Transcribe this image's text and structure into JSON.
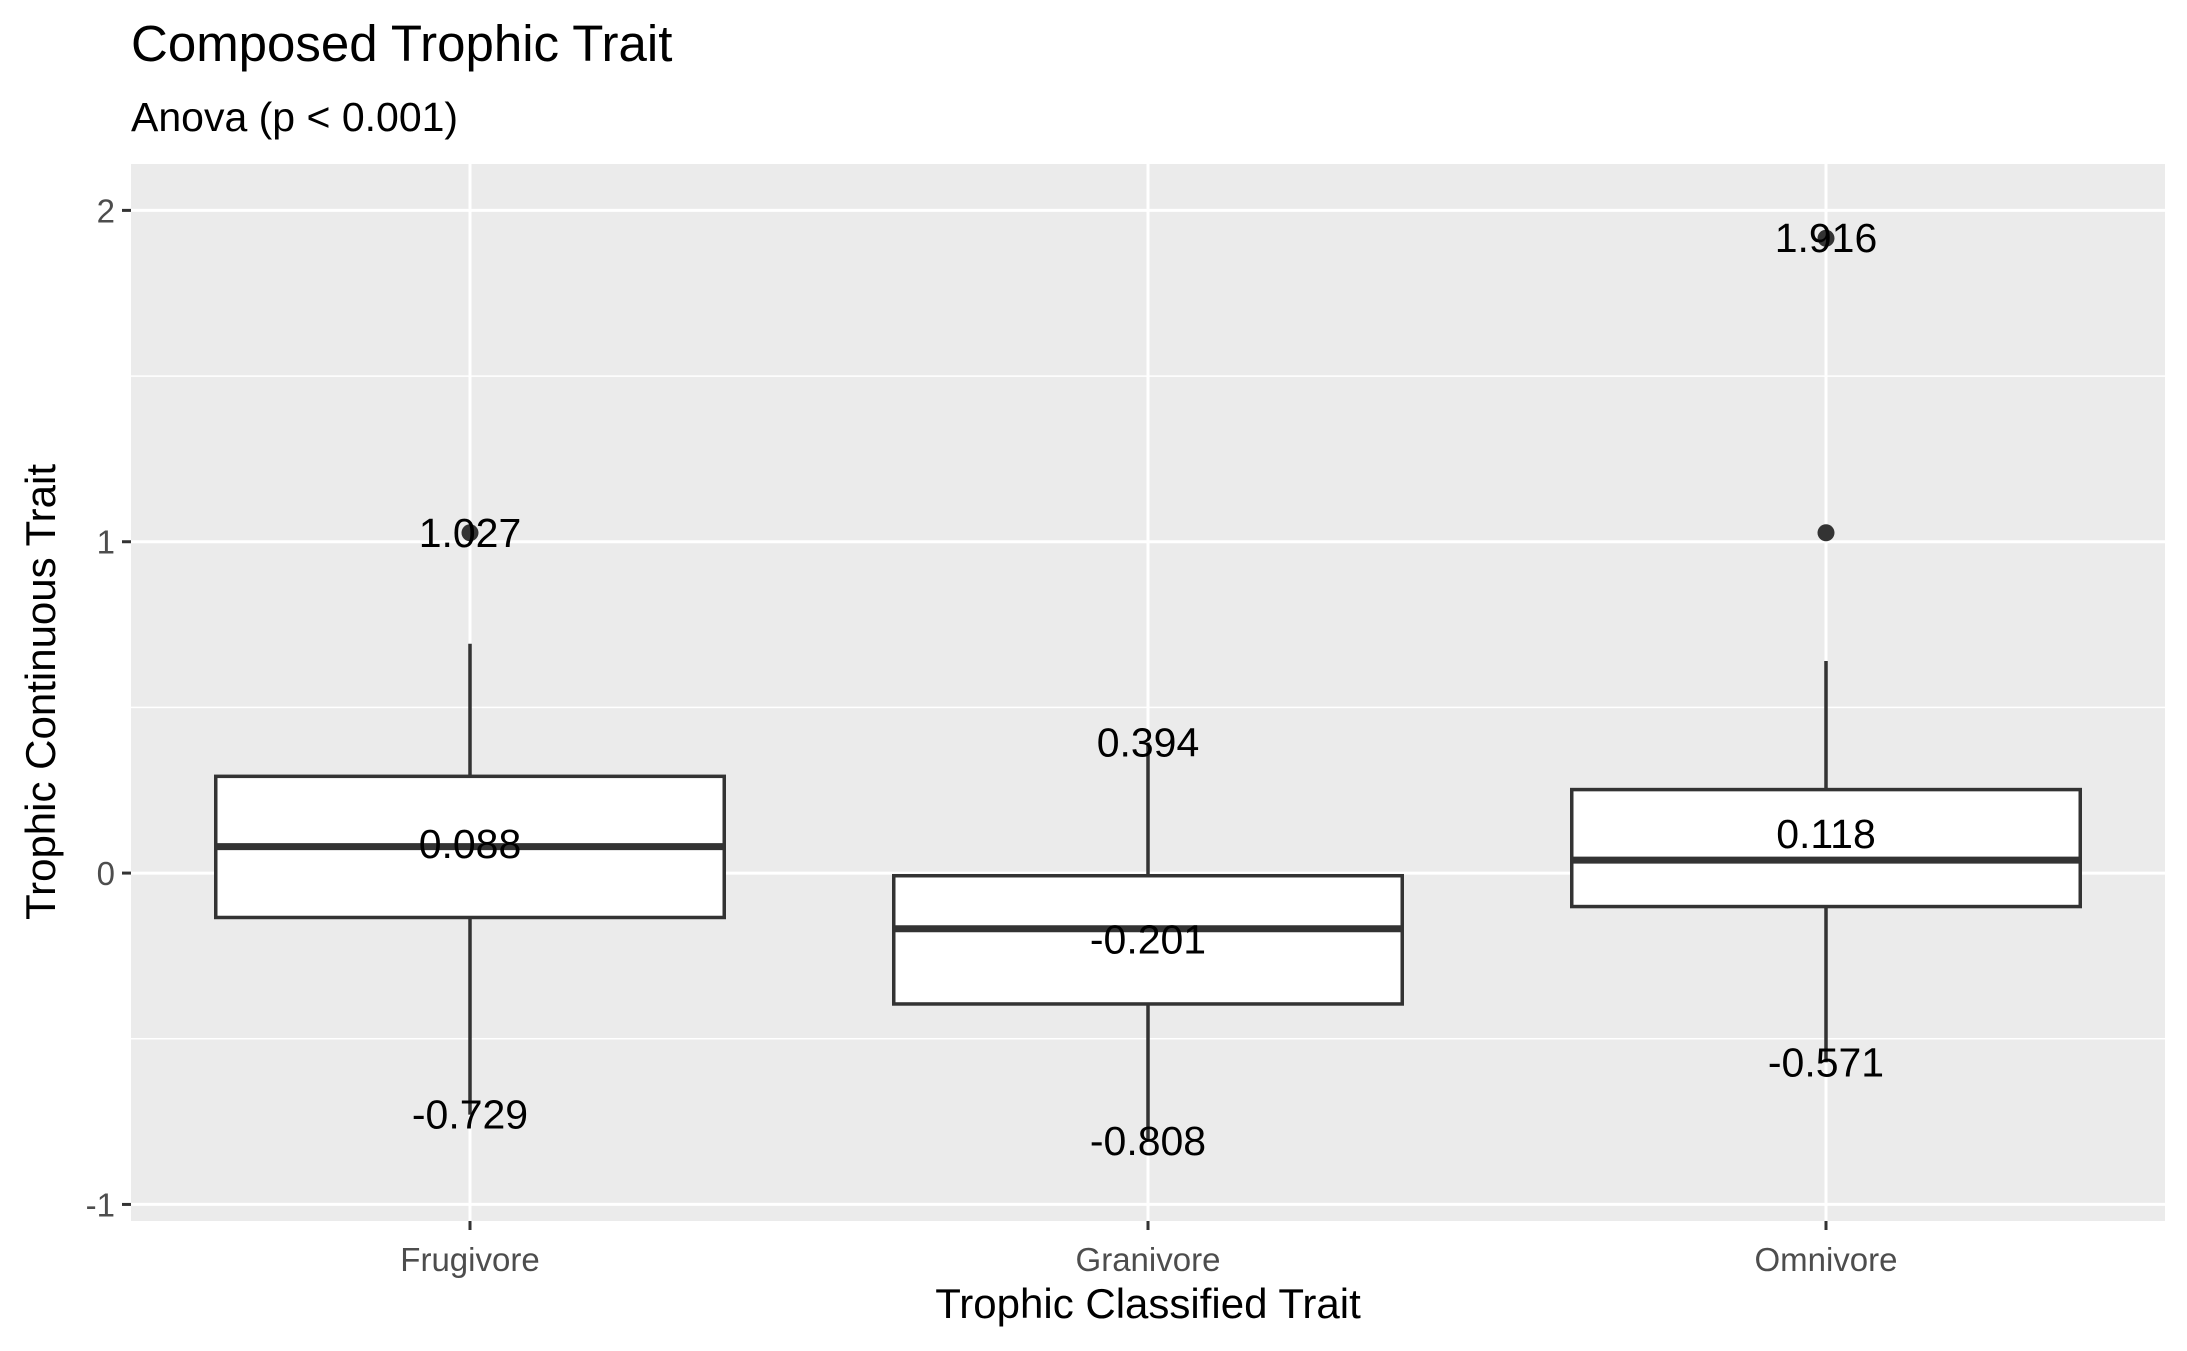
{
  "chart_data": {
    "type": "boxplot",
    "title": "Composed Trophic Trait",
    "subtitle": "Anova (p < 0.001)",
    "xlabel": "Trophic Classified Trait",
    "ylabel": "Trophic Continuous Trait",
    "ylim": [
      -1.05,
      2.14
    ],
    "y_ticks": [
      -1,
      0,
      1,
      2
    ],
    "y_tick_labels": [
      "-1",
      "0",
      "1",
      "2"
    ],
    "grid": true,
    "categories": [
      "Frugivore",
      "Granivore",
      "Omnivore"
    ],
    "boxes": [
      {
        "category": "Frugivore",
        "whisker_low": -0.729,
        "q1": -0.134,
        "median": 0.08,
        "q3": 0.292,
        "whisker_high": 0.692,
        "outliers": [
          1.027
        ],
        "labels": [
          {
            "text": "1.027",
            "y": 1.027
          },
          {
            "text": "0.088",
            "y": 0.088
          },
          {
            "text": "-0.729",
            "y": -0.729
          }
        ]
      },
      {
        "category": "Granivore",
        "whisker_low": -0.808,
        "q1": -0.395,
        "median": -0.168,
        "q3": -0.008,
        "whisker_high": 0.394,
        "outliers": [],
        "labels": [
          {
            "text": "0.394",
            "y": 0.394
          },
          {
            "text": "-0.201",
            "y": -0.201
          },
          {
            "text": "-0.808",
            "y": -0.808
          }
        ]
      },
      {
        "category": "Omnivore",
        "whisker_low": -0.571,
        "q1": -0.101,
        "median": 0.039,
        "q3": 0.252,
        "whisker_high": 0.64,
        "outliers": [
          1.916,
          1.027
        ],
        "labels": [
          {
            "text": "1.916",
            "y": 1.916
          },
          {
            "text": "0.118",
            "y": 0.118
          },
          {
            "text": "-0.571",
            "y": -0.571
          }
        ]
      }
    ],
    "colors": {
      "panel_background": "#ebebeb",
      "grid_line": "#ffffff",
      "box_fill": "#ffffff",
      "box_stroke": "#333333",
      "point": "#333333"
    }
  }
}
